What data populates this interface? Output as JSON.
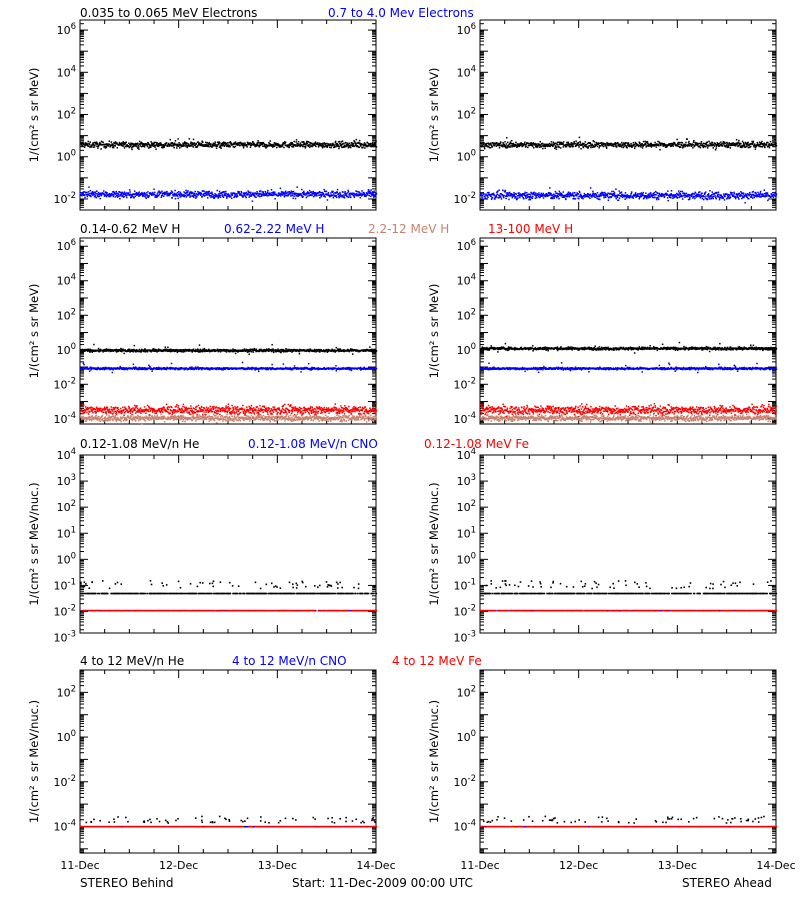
{
  "footer": {
    "left": "STEREO Behind",
    "center": "Start: 11-Dec-2009 00:00 UTC",
    "right": "STEREO Ahead"
  },
  "x_ticks": [
    "11-Dec",
    "12-Dec",
    "13-Dec",
    "14-Dec"
  ],
  "colors": {
    "black": "#000000",
    "blue": "#0000ff",
    "red": "#ff0000",
    "tan": "#c8826e"
  },
  "chart_data": [
    {
      "type": "scatter",
      "row": 0,
      "ylabel": "1/(cm² s sr MeV)",
      "ylog": true,
      "ylim": [
        0.003,
        3000000
      ],
      "yticks": [
        {
          "v": 0.01,
          "e": "-2"
        },
        {
          "v": 1,
          "e": "0"
        },
        {
          "v": 100,
          "e": "2"
        },
        {
          "v": 10000,
          "e": "4"
        },
        {
          "v": 1000000,
          "e": "6"
        }
      ],
      "legend": [
        {
          "name": "0.035 to 0.065 MeV Electrons",
          "color": "#000000"
        },
        {
          "name": "0.7 to 4.0 Mev Electrons",
          "color": "#0000ff"
        }
      ],
      "xlim": [
        "11-Dec-2009 00:00",
        "14-Dec-2009 00:00"
      ],
      "panels": [
        {
          "spacecraft": "STEREO Behind",
          "series": [
            {
              "name": "0.035 to 0.065 MeV Electrons",
              "color": "#000000",
              "level": 4,
              "scatter_dex": 0.07
            },
            {
              "name": "0.7 to 4.0 Mev Electrons",
              "color": "#0000ff",
              "level": 0.018,
              "scatter_dex": 0.08
            }
          ]
        },
        {
          "spacecraft": "STEREO Ahead",
          "series": [
            {
              "name": "0.035 to 0.065 MeV Electrons",
              "color": "#000000",
              "level": 4,
              "scatter_dex": 0.07
            },
            {
              "name": "0.7 to 4.0 Mev Electrons",
              "color": "#0000ff",
              "level": 0.016,
              "scatter_dex": 0.09
            }
          ]
        }
      ]
    },
    {
      "type": "scatter",
      "row": 1,
      "ylabel": "1/(cm² s sr MeV)",
      "ylog": true,
      "ylim": [
        5e-05,
        3000000
      ],
      "yticks": [
        {
          "v": 0.0001,
          "e": "-4"
        },
        {
          "v": 0.01,
          "e": "-2"
        },
        {
          "v": 1,
          "e": "0"
        },
        {
          "v": 100,
          "e": "2"
        },
        {
          "v": 10000,
          "e": "4"
        },
        {
          "v": 1000000,
          "e": "6"
        }
      ],
      "legend": [
        {
          "name": "0.14-0.62 MeV H",
          "color": "#000000"
        },
        {
          "name": "0.62-2.22 MeV H",
          "color": "#0000ff"
        },
        {
          "name": "2.2-12 MeV H",
          "color": "#c8826e"
        },
        {
          "name": "13-100 MeV H",
          "color": "#ff0000"
        }
      ],
      "xlim": [
        "11-Dec-2009 00:00",
        "14-Dec-2009 00:00"
      ],
      "panels": [
        {
          "spacecraft": "STEREO Behind",
          "series": [
            {
              "name": "0.14-0.62 MeV H",
              "color": "#000000",
              "level": 1.0,
              "scatter_dex": 0.04
            },
            {
              "name": "0.62-2.22 MeV H",
              "color": "#0000ff",
              "level": 0.09,
              "scatter_dex": 0.03
            },
            {
              "name": "2.2-12 MeV H",
              "color": "#c8826e",
              "level": 0.00012,
              "scatter_dex": 0.08
            },
            {
              "name": "13-100 MeV H",
              "color": "#ff0000",
              "level": 0.00035,
              "scatter_dex": 0.12
            }
          ]
        },
        {
          "spacecraft": "STEREO Ahead",
          "series": [
            {
              "name": "0.14-0.62 MeV H",
              "color": "#000000",
              "level": 1.3,
              "scatter_dex": 0.04
            },
            {
              "name": "0.62-2.22 MeV H",
              "color": "#0000ff",
              "level": 0.09,
              "scatter_dex": 0.03
            },
            {
              "name": "2.2-12 MeV H",
              "color": "#c8826e",
              "level": 0.00012,
              "scatter_dex": 0.08
            },
            {
              "name": "13-100 MeV H",
              "color": "#ff0000",
              "level": 0.00035,
              "scatter_dex": 0.12
            }
          ]
        }
      ]
    },
    {
      "type": "scatter",
      "row": 2,
      "ylabel": "1/(cm² s sr MeV/nuc.)",
      "ylog": true,
      "ylim": [
        0.0015,
        10000
      ],
      "yticks": [
        {
          "v": 0.001,
          "e": "-3"
        },
        {
          "v": 0.01,
          "e": "-2"
        },
        {
          "v": 0.1,
          "e": "-1"
        },
        {
          "v": 1,
          "e": "0"
        },
        {
          "v": 10,
          "e": "1"
        },
        {
          "v": 100,
          "e": "2"
        },
        {
          "v": 1000,
          "e": "3"
        },
        {
          "v": 10000,
          "e": "4"
        }
      ],
      "legend": [
        {
          "name": "0.12-1.08 MeV/n He",
          "color": "#000000"
        },
        {
          "name": "0.12-1.08 MeV/n CNO",
          "color": "#0000ff"
        },
        {
          "name": "0.12-1.08 MeV Fe",
          "color": "#ff0000"
        }
      ],
      "xlim": [
        "11-Dec-2009 00:00",
        "14-Dec-2009 00:00"
      ],
      "panels": [
        {
          "spacecraft": "STEREO Behind",
          "series": [
            {
              "name": "0.12-1.08 MeV/n He",
              "color": "#000000",
              "level": 0.05,
              "upper_level": 0.1
            },
            {
              "name": "0.12-1.08 MeV/n CNO",
              "color": "#0000ff",
              "level": 0.011
            },
            {
              "name": "0.12-1.08 MeV Fe",
              "color": "#ff0000",
              "level": 0.011
            }
          ]
        },
        {
          "spacecraft": "STEREO Ahead",
          "series": [
            {
              "name": "0.12-1.08 MeV/n He",
              "color": "#000000",
              "level": 0.05,
              "upper_level": 0.1
            },
            {
              "name": "0.12-1.08 MeV/n CNO",
              "color": "#0000ff",
              "level": 0.011
            },
            {
              "name": "0.12-1.08 MeV Fe",
              "color": "#ff0000",
              "level": 0.011
            }
          ]
        }
      ]
    },
    {
      "type": "scatter",
      "row": 3,
      "ylabel": "1/(cm² s sr MeV/nuc.)",
      "ylog": true,
      "ylim": [
        6.5e-06,
        1000
      ],
      "yticks": [
        {
          "v": 0.0001,
          "e": "-4"
        },
        {
          "v": 0.01,
          "e": "-2"
        },
        {
          "v": 1,
          "e": "0"
        },
        {
          "v": 100,
          "e": "2"
        }
      ],
      "legend": [
        {
          "name": "4 to 12 MeV/n He",
          "color": "#000000"
        },
        {
          "name": "4 to 12 MeV/n CNO",
          "color": "#0000ff"
        },
        {
          "name": "4 to 12 MeV Fe",
          "color": "#ff0000"
        }
      ],
      "xlim": [
        "11-Dec-2009 00:00",
        "14-Dec-2009 00:00"
      ],
      "panels": [
        {
          "spacecraft": "STEREO Behind",
          "series": [
            {
              "name": "4 to 12 MeV/n He",
              "color": "#000000",
              "level": 0.0001,
              "upper_level": 0.00019
            },
            {
              "name": "4 to 12 MeV/n CNO",
              "color": "#0000ff",
              "level": 0.0001
            },
            {
              "name": "4 to 12 MeV Fe",
              "color": "#ff0000",
              "level": 0.0001
            }
          ]
        },
        {
          "spacecraft": "STEREO Ahead",
          "series": [
            {
              "name": "4 to 12 MeV/n He",
              "color": "#000000",
              "level": 0.0001,
              "upper_level": 0.00019
            },
            {
              "name": "4 to 12 MeV/n CNO",
              "color": "#0000ff",
              "level": 0.0001
            },
            {
              "name": "4 to 12 MeV Fe",
              "color": "#ff0000",
              "level": 0.0001
            }
          ]
        }
      ]
    }
  ]
}
